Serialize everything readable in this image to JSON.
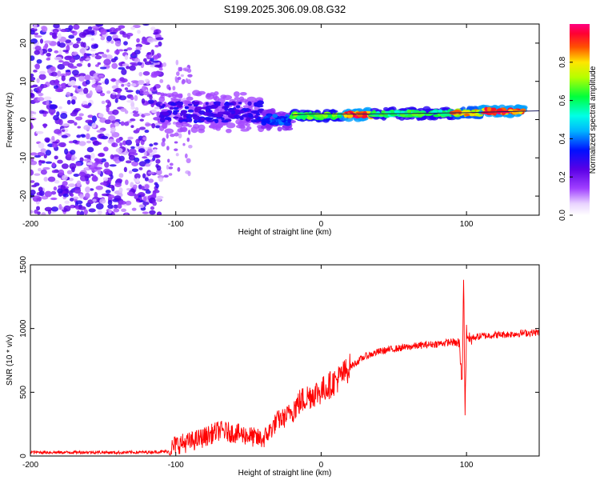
{
  "figure": {
    "title": "S199.2025.306.09.08.G32"
  },
  "chart_data": [
    {
      "type": "heatmap",
      "title": "S199.2025.306.09.08.G32",
      "xlabel": "Height of straight line (km)",
      "ylabel": "Frequency (Hz)",
      "xlim": [
        -200,
        150
      ],
      "ylim": [
        -25,
        25
      ],
      "xticks": [
        -200,
        -100,
        0,
        100
      ],
      "xtick_labels": [
        "-200",
        "-100",
        "0",
        "100"
      ],
      "yticks": [
        -20,
        -10,
        0,
        10,
        20
      ],
      "ytick_labels": [
        "-20",
        "-10",
        "0",
        "10",
        "20"
      ],
      "colorbar": {
        "label": "Normalized spectral amplitude",
        "range": [
          0,
          1
        ],
        "ticks": [
          0.0,
          0.2,
          0.4,
          0.6,
          0.8
        ],
        "tick_labels": [
          "0.0",
          "0.2",
          "0.4",
          "0.6",
          "0.8"
        ],
        "colormap": "rainbow (white-violet-blue-cyan-green-yellow-red-pink)"
      },
      "ridge_line": {
        "x": [
          -20,
          -10,
          0,
          20,
          40,
          60,
          80,
          100,
          120,
          150
        ],
        "y": [
          1.2,
          1.4,
          1.5,
          1.4,
          1.5,
          1.6,
          1.7,
          1.8,
          2.0,
          2.3
        ]
      },
      "ridge_segments": [
        {
          "x_start": -110,
          "x_end": -40,
          "frequency": 2,
          "amplitude": 0.3,
          "note": "scattered blobs, wide spread"
        },
        {
          "x_start": -40,
          "x_end": -20,
          "frequency": 0,
          "amplitude": 0.4
        },
        {
          "x_start": -20,
          "x_end": 15,
          "frequency": 1,
          "amplitude": 0.7
        },
        {
          "x_start": 15,
          "x_end": 35,
          "frequency": 1.3,
          "amplitude": 0.95
        },
        {
          "x_start": 35,
          "x_end": 90,
          "frequency": 1.6,
          "amplitude": 0.65
        },
        {
          "x_start": 90,
          "x_end": 110,
          "frequency": 1.8,
          "amplitude": 0.85
        },
        {
          "x_start": 110,
          "x_end": 140,
          "frequency": 2.2,
          "amplitude": 0.95
        }
      ],
      "noise_region": {
        "x_start": -200,
        "x_end": -110,
        "amplitude": 0.25,
        "note": "broadband noise across all frequencies"
      }
    },
    {
      "type": "line",
      "xlabel": "Height of straight line (km)",
      "ylabel": "SNR (10 * v/v)",
      "xlim": [
        -200,
        150
      ],
      "ylim": [
        0,
        1500
      ],
      "xticks": [
        -200,
        -100,
        0,
        100
      ],
      "xtick_labels": [
        "-200",
        "-100",
        "0",
        "100"
      ],
      "yticks": [
        0,
        500,
        1000,
        1500
      ],
      "ytick_labels": [
        "0",
        "500",
        "1000",
        "1500"
      ],
      "color": "#ff0000",
      "series": [
        {
          "name": "SNR",
          "x": [
            -200,
            -180,
            -160,
            -140,
            -120,
            -105,
            -100,
            -90,
            -80,
            -70,
            -60,
            -50,
            -45,
            -40,
            -35,
            -30,
            -25,
            -20,
            -15,
            -10,
            -5,
            0,
            5,
            10,
            15,
            20,
            25,
            30,
            40,
            50,
            60,
            70,
            80,
            90,
            95,
            97,
            98,
            99,
            100,
            102,
            105,
            110,
            120,
            130,
            140,
            150
          ],
          "y": [
            30,
            28,
            30,
            27,
            30,
            35,
            90,
            110,
            150,
            200,
            180,
            160,
            140,
            130,
            200,
            280,
            300,
            360,
            420,
            460,
            490,
            510,
            550,
            590,
            640,
            700,
            740,
            780,
            820,
            840,
            855,
            870,
            880,
            895,
            880,
            560,
            1420,
            350,
            980,
            910,
            930,
            940,
            950,
            955,
            965,
            970
          ]
        }
      ]
    }
  ]
}
